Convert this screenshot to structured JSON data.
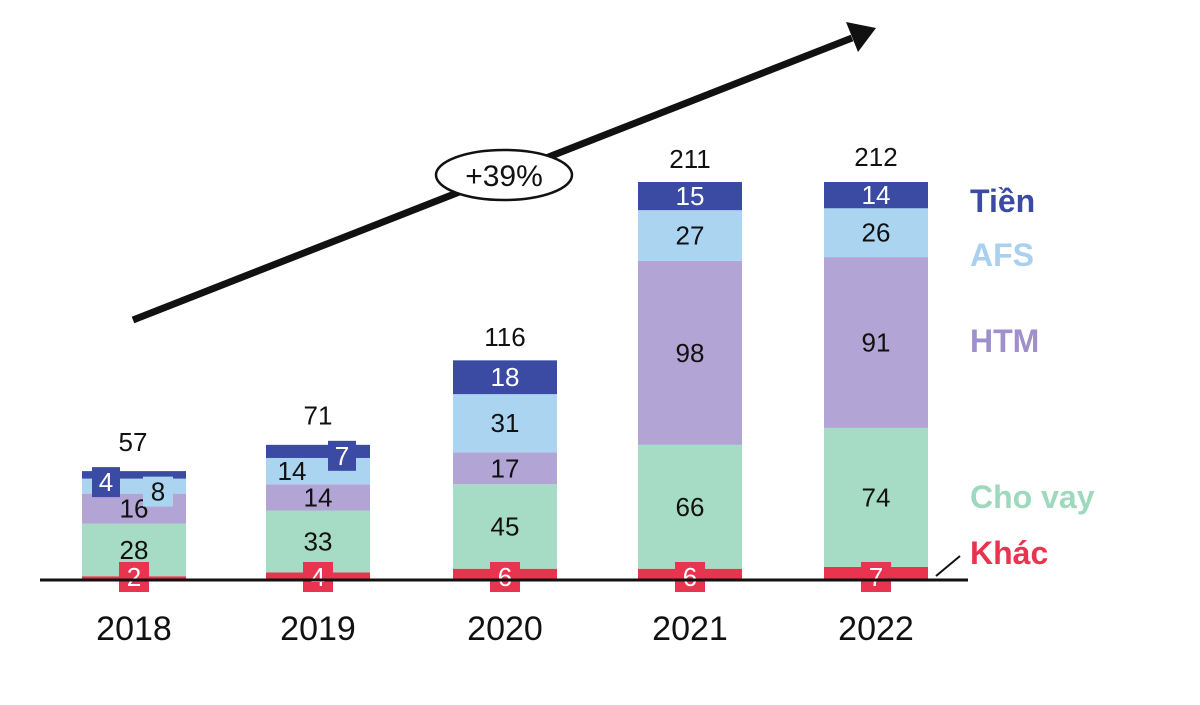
{
  "chart_data": {
    "type": "bar",
    "stacked": true,
    "categories": [
      "2018",
      "2019",
      "2020",
      "2021",
      "2022"
    ],
    "series": [
      {
        "name": "Khác",
        "color": "#e8344e",
        "values": [
          2,
          4,
          6,
          6,
          7
        ]
      },
      {
        "name": "Cho vay",
        "color": "#a6dcc5",
        "values": [
          28,
          33,
          45,
          66,
          74
        ]
      },
      {
        "name": "HTM",
        "color": "#b2a4d4",
        "values": [
          16,
          14,
          17,
          98,
          91
        ]
      },
      {
        "name": "AFS",
        "color": "#aad4f0",
        "values": [
          8,
          14,
          31,
          27,
          26
        ]
      },
      {
        "name": "Tiền",
        "color": "#3b4aa3",
        "values": [
          4,
          7,
          18,
          15,
          14
        ]
      }
    ],
    "totals": [
      57,
      71,
      116,
      211,
      212
    ],
    "annotation": "+39%",
    "ylim": [
      0,
      212
    ],
    "legend_position": "right",
    "legend_colors": {
      "Tiền": "#3b4aa3",
      "AFS": "#a9d1ee",
      "HTM": "#9f8fcb",
      "Cho vay": "#9ed9be",
      "Khác": "#e8344e"
    }
  }
}
